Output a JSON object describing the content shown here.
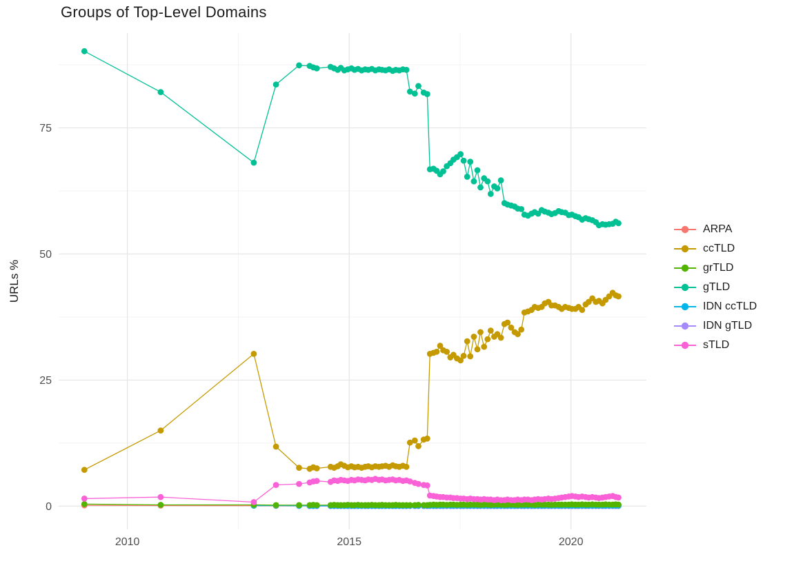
{
  "title": "Groups of Top-Level Domains",
  "axes": {
    "y_label": "URLs %",
    "y_tick_labels": [
      "0",
      "25",
      "50",
      "75"
    ],
    "x_tick_labels": [
      "2010",
      "2015",
      "2020"
    ]
  },
  "legend": {
    "position": "right",
    "items": [
      "ARPA",
      "ccTLD",
      "grTLD",
      "gTLD",
      "IDN ccTLD",
      "IDN gTLD",
      "sTLD"
    ]
  },
  "colors": {
    "ARPA": "#F8766D",
    "ccTLD": "#C49A00",
    "grTLD": "#53B400",
    "gTLD": "#00C094",
    "IDN_ccTLD": "#00B6EB",
    "IDN_gTLD": "#A58AFF",
    "sTLD": "#FB61D7",
    "grid_major": "#E4E4E4",
    "grid_minor": "#F1F1F1",
    "tick_text": "#4d4d4d",
    "title_text": "#1b1b1b"
  },
  "chart_data": {
    "type": "line",
    "title": "Groups of Top-Level Domains",
    "xlabel": "",
    "ylabel": "URLs %",
    "xlim": [
      2008.45,
      2021.7
    ],
    "ylim": [
      -4.6,
      93.8
    ],
    "x_ticks": [
      2010,
      2015,
      2020
    ],
    "y_ticks": [
      0,
      25,
      50,
      75
    ],
    "x_minor": [
      2012.5,
      2017.5
    ],
    "y_minor": [
      12.5,
      37.5,
      62.5,
      87.5
    ],
    "grid": true,
    "legend_position": "right",
    "x": [
      2009.03,
      2010.75,
      2012.85,
      2013.35,
      2013.87,
      2014.11,
      2014.19,
      2014.27,
      2014.58,
      2014.66,
      2014.74,
      2014.81,
      2014.89,
      2014.97,
      2015.05,
      2015.12,
      2015.2,
      2015.28,
      2015.36,
      2015.43,
      2015.51,
      2015.59,
      2015.67,
      2015.74,
      2015.82,
      2015.9,
      2015.98,
      2016.05,
      2016.13,
      2016.21,
      2016.29,
      2016.37,
      2016.48,
      2016.56,
      2016.68,
      2016.76,
      2016.82,
      2016.9,
      2016.97,
      2017.05,
      2017.12,
      2017.2,
      2017.28,
      2017.35,
      2017.43,
      2017.51,
      2017.58,
      2017.66,
      2017.73,
      2017.81,
      2017.89,
      2017.96,
      2018.04,
      2018.12,
      2018.19,
      2018.27,
      2018.34,
      2018.42,
      2018.5,
      2018.57,
      2018.65,
      2018.73,
      2018.8,
      2018.88,
      2018.95,
      2019.03,
      2019.11,
      2019.18,
      2019.26,
      2019.34,
      2019.41,
      2019.49,
      2019.56,
      2019.64,
      2019.72,
      2019.79,
      2019.87,
      2019.95,
      2020.02,
      2020.1,
      2020.17,
      2020.25,
      2020.33,
      2020.4,
      2020.48,
      2020.56,
      2020.63,
      2020.71,
      2020.78,
      2020.86,
      2020.94,
      2021.01,
      2021.07
    ],
    "series": [
      {
        "name": "ARPA",
        "color": "#F8766D",
        "values": [
          0.15,
          0.12,
          0.1,
          0.06,
          0.05,
          0.05,
          0.05,
          0.05,
          0.05,
          0.05,
          0.05,
          0.05,
          0.05,
          0.05,
          0.05,
          0.05,
          0.05,
          0.05,
          0.05,
          0.05,
          0.05,
          0.05,
          0.05,
          0.05,
          0.05,
          0.05,
          0.05,
          0.05,
          0.05,
          0.05,
          0.05,
          0.05,
          0.05,
          0.05,
          0.05,
          0.05,
          0.05,
          0.05,
          0.05,
          0.05,
          0.05,
          0.05,
          0.05,
          0.05,
          0.05,
          0.05,
          0.05,
          0.05,
          0.05,
          0.05,
          0.05,
          0.05,
          0.05,
          0.05,
          0.05,
          0.05,
          0.05,
          0.05,
          0.05,
          0.05,
          0.05,
          0.05,
          0.05,
          0.05,
          0.05,
          0.05,
          0.05,
          0.05,
          0.05,
          0.05,
          0.05,
          0.05,
          0.05,
          0.05,
          0.05,
          0.05,
          0.05,
          0.05,
          0.05,
          0.05,
          0.05,
          0.05,
          0.05,
          0.05,
          0.05,
          0.05,
          0.05,
          0.05,
          0.05,
          0.05,
          0.05,
          0.05,
          0.05
        ]
      },
      {
        "name": "ccTLD",
        "color": "#C49A00",
        "values": [
          7.2,
          15.0,
          30.2,
          11.8,
          7.6,
          7.4,
          7.7,
          7.5,
          7.8,
          7.6,
          7.9,
          8.3,
          8.0,
          7.7,
          7.9,
          7.7,
          7.8,
          7.6,
          7.8,
          7.9,
          7.7,
          7.9,
          7.8,
          7.9,
          8.0,
          7.8,
          8.1,
          7.9,
          7.8,
          8.0,
          7.8,
          12.6,
          13.0,
          11.9,
          13.2,
          13.4,
          30.2,
          30.4,
          30.6,
          31.8,
          30.9,
          30.6,
          29.5,
          30.0,
          29.3,
          28.9,
          29.8,
          32.7,
          29.7,
          33.6,
          31.1,
          34.5,
          31.6,
          33.1,
          34.8,
          33.6,
          34.1,
          33.4,
          36.1,
          36.4,
          35.4,
          34.5,
          34.1,
          35.0,
          38.4,
          38.6,
          38.9,
          39.5,
          39.3,
          39.5,
          40.2,
          40.5,
          39.8,
          39.8,
          39.5,
          39.1,
          39.5,
          39.3,
          39.1,
          39.1,
          39.5,
          38.9,
          40.0,
          40.5,
          41.2,
          40.5,
          40.7,
          40.2,
          40.9,
          41.6,
          42.3,
          41.8,
          41.6
        ]
      },
      {
        "name": "grTLD",
        "color": "#53B400",
        "values": [
          0.4,
          0.25,
          0.25,
          0.2,
          0.2,
          0.2,
          0.25,
          0.2,
          0.2,
          0.25,
          0.2,
          0.2,
          0.2,
          0.25,
          0.2,
          0.2,
          0.25,
          0.2,
          0.2,
          0.2,
          0.25,
          0.2,
          0.2,
          0.25,
          0.2,
          0.2,
          0.2,
          0.25,
          0.2,
          0.2,
          0.2,
          0.2,
          0.2,
          0.25,
          0.2,
          0.2,
          0.25,
          0.3,
          0.25,
          0.3,
          0.3,
          0.25,
          0.3,
          0.3,
          0.25,
          0.3,
          0.3,
          0.25,
          0.3,
          0.3,
          0.3,
          0.25,
          0.3,
          0.3,
          0.25,
          0.3,
          0.3,
          0.3,
          0.25,
          0.3,
          0.3,
          0.3,
          0.25,
          0.3,
          0.3,
          0.3,
          0.3,
          0.25,
          0.3,
          0.3,
          0.3,
          0.3,
          0.25,
          0.3,
          0.3,
          0.3,
          0.3,
          0.3,
          0.35,
          0.3,
          0.3,
          0.35,
          0.3,
          0.3,
          0.35,
          0.3,
          0.3,
          0.3,
          0.35,
          0.3,
          0.3,
          0.35,
          0.3
        ]
      },
      {
        "name": "gTLD",
        "color": "#00C094",
        "values": [
          90.2,
          82.1,
          68.1,
          83.6,
          87.4,
          87.3,
          87.0,
          86.8,
          87.1,
          86.8,
          86.5,
          86.9,
          86.4,
          86.6,
          86.8,
          86.5,
          86.7,
          86.4,
          86.6,
          86.5,
          86.7,
          86.4,
          86.6,
          86.5,
          86.4,
          86.6,
          86.3,
          86.5,
          86.4,
          86.6,
          86.5,
          82.2,
          81.8,
          83.3,
          82.0,
          81.7,
          66.8,
          66.9,
          66.5,
          65.8,
          66.4,
          67.4,
          68.0,
          68.7,
          69.2,
          69.8,
          68.5,
          65.3,
          68.3,
          64.4,
          66.6,
          63.2,
          65.0,
          64.4,
          61.9,
          63.4,
          63.0,
          64.6,
          60.1,
          59.8,
          59.6,
          59.4,
          59.0,
          58.9,
          57.8,
          57.6,
          58.0,
          58.3,
          58.0,
          58.7,
          58.4,
          58.2,
          57.9,
          58.1,
          58.5,
          58.3,
          58.2,
          57.7,
          57.8,
          57.5,
          57.3,
          56.8,
          57.1,
          56.9,
          56.7,
          56.3,
          55.7,
          55.9,
          55.8,
          55.9,
          56.0,
          56.4,
          56.1
        ]
      },
      {
        "name": "IDN ccTLD",
        "color": "#00B6EB",
        "values": [
          null,
          null,
          0.1,
          0.12,
          0.08,
          0.08,
          0.08,
          0.08,
          0.08,
          0.08,
          0.08,
          0.08,
          0.08,
          0.08,
          0.08,
          0.08,
          0.08,
          0.08,
          0.08,
          0.08,
          0.08,
          0.08,
          0.08,
          0.08,
          0.08,
          0.08,
          0.08,
          0.08,
          0.08,
          0.08,
          0.08,
          0.1,
          0.1,
          0.1,
          0.1,
          0.1,
          0.12,
          0.12,
          0.12,
          0.12,
          0.12,
          0.12,
          0.12,
          0.12,
          0.12,
          0.12,
          0.12,
          0.12,
          0.12,
          0.12,
          0.12,
          0.12,
          0.12,
          0.12,
          0.12,
          0.12,
          0.12,
          0.12,
          0.12,
          0.12,
          0.12,
          0.12,
          0.12,
          0.12,
          0.12,
          0.12,
          0.12,
          0.12,
          0.12,
          0.12,
          0.12,
          0.12,
          0.12,
          0.12,
          0.12,
          0.12,
          0.12,
          0.12,
          0.12,
          0.12,
          0.12,
          0.12,
          0.12,
          0.12,
          0.12,
          0.12,
          0.12,
          0.12,
          0.12,
          0.12,
          0.12,
          0.12,
          0.12
        ]
      },
      {
        "name": "IDN gTLD",
        "color": "#A58AFF",
        "values": [
          null,
          null,
          null,
          null,
          null,
          0.02,
          0.02,
          0.02,
          0.02,
          0.02,
          0.02,
          0.02,
          0.02,
          0.02,
          0.02,
          0.02,
          0.02,
          0.02,
          0.02,
          0.02,
          0.02,
          0.02,
          0.02,
          0.02,
          0.02,
          0.02,
          0.02,
          0.02,
          0.02,
          0.02,
          0.02,
          0.02,
          0.02,
          0.02,
          0.02,
          0.02,
          0.02,
          0.02,
          0.02,
          0.02,
          0.02,
          0.02,
          0.02,
          0.02,
          0.02,
          0.02,
          0.02,
          0.02,
          0.02,
          0.02,
          0.02,
          0.02,
          0.02,
          0.02,
          0.02,
          0.02,
          0.02,
          0.02,
          0.02,
          0.02,
          0.02,
          0.02,
          0.02,
          0.02,
          0.02,
          0.02,
          0.02,
          0.02,
          0.02,
          0.02,
          0.02,
          0.02,
          0.02,
          0.02,
          0.02,
          0.02,
          0.02,
          0.02,
          0.02,
          0.02,
          0.02,
          0.02,
          0.02,
          0.02,
          0.02,
          0.02,
          0.02,
          0.02,
          0.02,
          0.02,
          0.02,
          0.02,
          0.02
        ]
      },
      {
        "name": "sTLD",
        "color": "#FB61D7",
        "values": [
          1.5,
          1.8,
          0.8,
          4.2,
          4.4,
          4.7,
          4.9,
          5.0,
          4.8,
          5.1,
          5.0,
          5.2,
          5.1,
          5.0,
          5.2,
          5.1,
          5.3,
          5.2,
          5.1,
          5.3,
          5.2,
          5.4,
          5.2,
          5.3,
          5.1,
          5.2,
          5.3,
          5.1,
          5.2,
          5.0,
          5.1,
          4.9,
          4.6,
          4.4,
          4.2,
          4.1,
          2.1,
          2.0,
          1.9,
          1.8,
          1.8,
          1.7,
          1.7,
          1.6,
          1.6,
          1.5,
          1.5,
          1.4,
          1.5,
          1.4,
          1.4,
          1.3,
          1.4,
          1.3,
          1.3,
          1.2,
          1.3,
          1.2,
          1.2,
          1.3,
          1.2,
          1.2,
          1.3,
          1.2,
          1.3,
          1.3,
          1.2,
          1.3,
          1.4,
          1.3,
          1.4,
          1.5,
          1.4,
          1.5,
          1.6,
          1.7,
          1.8,
          1.9,
          2.0,
          1.9,
          1.8,
          1.9,
          1.8,
          1.7,
          1.8,
          1.7,
          1.6,
          1.7,
          1.8,
          1.9,
          2.0,
          1.8,
          1.7
        ]
      }
    ]
  }
}
